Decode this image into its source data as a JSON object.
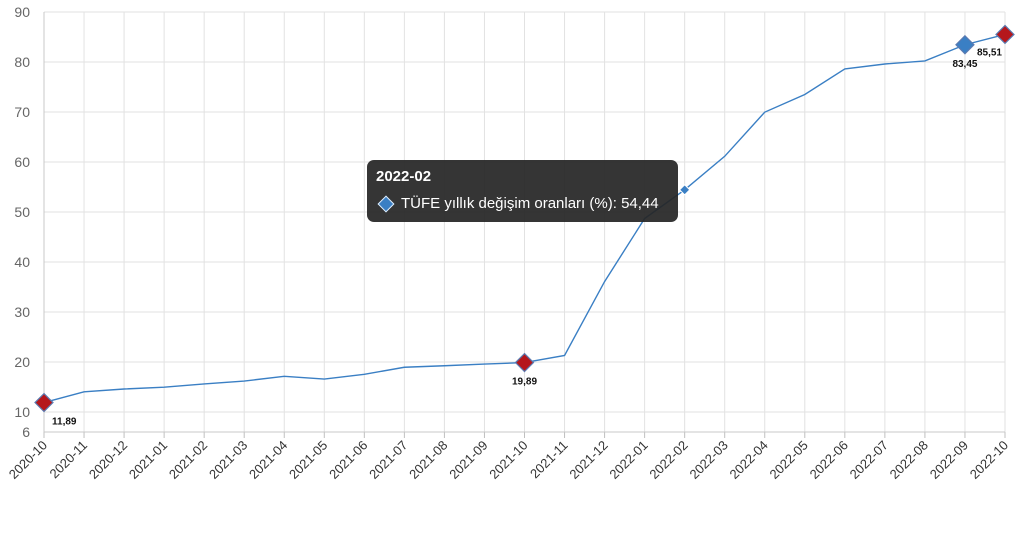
{
  "chart_data": {
    "type": "line",
    "title": "",
    "xlabel": "",
    "ylabel": "",
    "categories": [
      "2020-10",
      "2020-11",
      "2020-12",
      "2021-01",
      "2021-02",
      "2021-03",
      "2021-04",
      "2021-05",
      "2021-06",
      "2021-07",
      "2021-08",
      "2021-09",
      "2021-10",
      "2021-11",
      "2021-12",
      "2022-01",
      "2022-02",
      "2022-03",
      "2022-04",
      "2022-05",
      "2022-06",
      "2022-07",
      "2022-08",
      "2022-09",
      "2022-10"
    ],
    "series": [
      {
        "name": "TÜFE yıllık değişim oranları (%)",
        "color": "#3a7fc4",
        "values": [
          11.89,
          14.03,
          14.6,
          14.97,
          15.61,
          16.19,
          17.14,
          16.59,
          17.53,
          18.95,
          19.25,
          19.58,
          19.89,
          21.31,
          36.08,
          48.69,
          54.44,
          61.14,
          69.97,
          73.5,
          78.62,
          79.6,
          80.21,
          83.45,
          85.51
        ]
      }
    ],
    "y_ticks": [
      6,
      10,
      20,
      30,
      40,
      50,
      60,
      70,
      80,
      90
    ],
    "ylim": [
      6,
      90
    ],
    "grid": true,
    "highlighted_points": [
      {
        "index": 0,
        "label": "11,89",
        "color": "#b5171c"
      },
      {
        "index": 12,
        "label": "19,89",
        "color": "#b5171c"
      },
      {
        "index": 23,
        "label": "83,45",
        "color": "#3a7fc4"
      },
      {
        "index": 24,
        "label": "85,51",
        "color": "#b5171c"
      }
    ],
    "hover_index": 16
  },
  "tooltip": {
    "title": "2022-02",
    "series_name": "TÜFE yıllık değişim oranları (%)",
    "value": "54,44",
    "marker_color": "#3a7fc4"
  }
}
